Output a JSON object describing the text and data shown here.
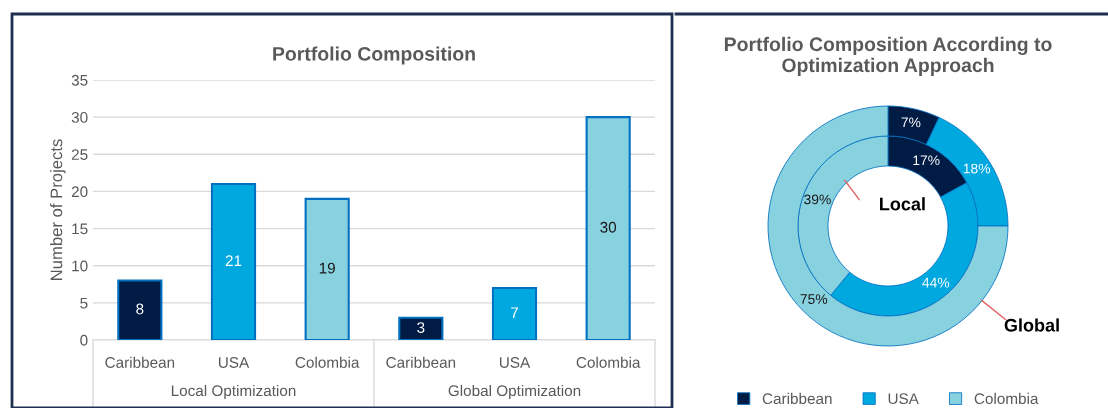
{
  "chart_data": [
    {
      "type": "bar",
      "title": "Portfolio Composition",
      "ylabel": "Number of Projects",
      "categories": [
        "Caribbean",
        "USA",
        "Colombia",
        "Caribbean",
        "USA",
        "Colombia"
      ],
      "values": [
        8,
        21,
        19,
        3,
        7,
        30
      ],
      "colors": [
        "#001b44",
        "#00a8e0",
        "#88d2e0",
        "#001b44",
        "#00a8e0",
        "#88d2e0"
      ],
      "ylim": [
        0,
        35
      ],
      "yticks": [
        0,
        5,
        10,
        15,
        20,
        25,
        30,
        35
      ],
      "grid": "y",
      "data_labels": true,
      "annotations": [
        "Local Optimization",
        "Global Optimization"
      ]
    },
    {
      "type": "donut",
      "title": "Portfolio Composition According to Optimization Approach",
      "categories": [
        "Caribbean",
        "USA",
        "Colombia"
      ],
      "series": [
        {
          "name": "Local",
          "values": [
            17,
            44,
            39
          ],
          "value_labels": [
            "17%",
            "44%",
            "39%"
          ]
        },
        {
          "name": "Global",
          "values": [
            7,
            18,
            75
          ],
          "value_labels": [
            "7%",
            "18%",
            "75%"
          ]
        }
      ],
      "colors": [
        "#001b44",
        "#00a8e0",
        "#88d2e0"
      ],
      "legend": "bottom"
    }
  ]
}
